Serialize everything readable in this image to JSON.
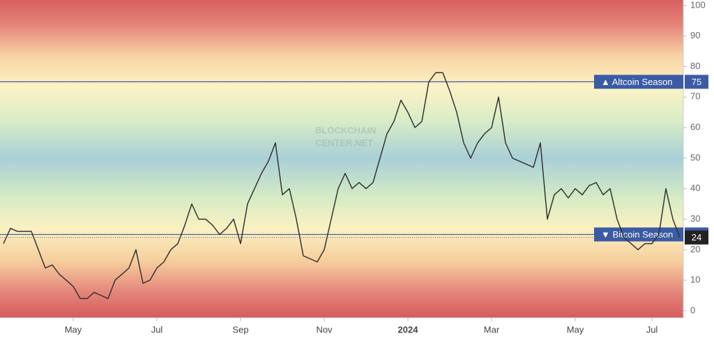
{
  "chart_data": {
    "type": "line",
    "watermark": [
      "BLOCKCHAIN",
      "CENTER.NET"
    ],
    "categories": [
      null,
      null,
      null,
      null,
      null,
      null,
      null,
      null,
      null,
      null,
      "May",
      null,
      null,
      null,
      null,
      null,
      null,
      null,
      null,
      null,
      null,
      null,
      "Jul",
      null,
      null,
      null,
      null,
      null,
      null,
      null,
      null,
      null,
      null,
      null,
      "Sep",
      null,
      null,
      null,
      null,
      null,
      null,
      null,
      null,
      null,
      null,
      null,
      "Nov",
      null,
      null,
      null,
      null,
      null,
      null,
      null,
      null,
      null,
      null,
      null,
      "2024",
      null,
      null,
      null,
      null,
      null,
      null,
      null,
      null,
      null,
      null,
      null,
      "Mar",
      null,
      null,
      null,
      null,
      null,
      null,
      null,
      null,
      null,
      null,
      null,
      "May",
      null,
      null,
      null,
      null,
      null,
      null,
      null,
      null,
      null,
      null,
      "Jul",
      null,
      null,
      null,
      null
    ],
    "series": [
      {
        "color": "#333333",
        "values": [
          22,
          27,
          26,
          26,
          26,
          20,
          14,
          15,
          12,
          10,
          8,
          4,
          4,
          6,
          5,
          4,
          10,
          12,
          14,
          20,
          9,
          10,
          14,
          16,
          20,
          22,
          28,
          35,
          30,
          30,
          28,
          25,
          27,
          30,
          22,
          35,
          40,
          45,
          49,
          55,
          38,
          40,
          30,
          18,
          17,
          16,
          20,
          30,
          40,
          45,
          40,
          42,
          40,
          42,
          50,
          58,
          62,
          69,
          65,
          60,
          62,
          75,
          78,
          78,
          72,
          65,
          55,
          50,
          55,
          58,
          60,
          70,
          55,
          50,
          49,
          48,
          47,
          55,
          30,
          38,
          40,
          37,
          40,
          38,
          41,
          42,
          38,
          40,
          30,
          24,
          22,
          20,
          22,
          22,
          25,
          40,
          30,
          24
        ]
      }
    ],
    "ylim": [
      -2.3,
      101.8
    ],
    "yticks": [
      0,
      10,
      20,
      30,
      40,
      50,
      60,
      70,
      80,
      90,
      100
    ],
    "hlines": [
      {
        "value": 75,
        "label": "▲ Altcoin Season",
        "color": "#3b5ba5"
      },
      {
        "value": 25,
        "label": "▼ Bitcoin Season",
        "color": "#3b5ba5"
      }
    ]
  }
}
